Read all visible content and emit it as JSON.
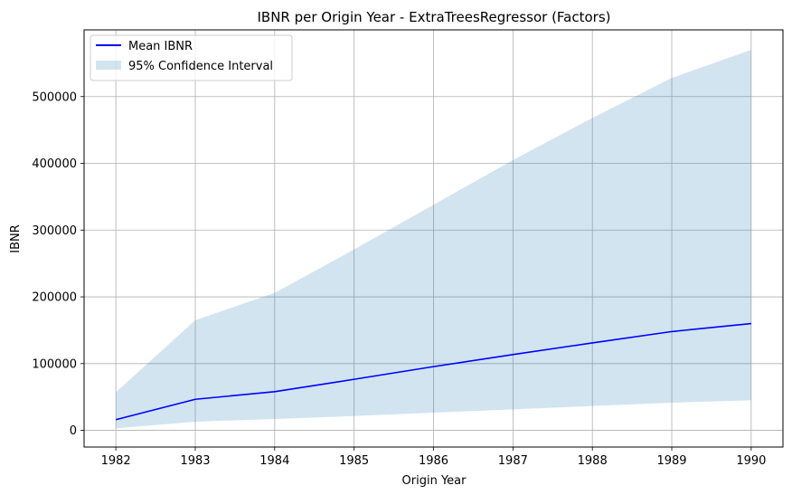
{
  "chart_data": {
    "type": "line",
    "title": "IBNR per Origin Year - ExtraTreesRegressor (Factors)",
    "xlabel": "Origin Year",
    "ylabel": "IBNR",
    "x": [
      1982,
      1983,
      1984,
      1985,
      1986,
      1987,
      1988,
      1989,
      1990
    ],
    "x_tick_labels": [
      "1982",
      "1983",
      "1984",
      "1985",
      "1986",
      "1987",
      "1988",
      "1989",
      "1990"
    ],
    "y_ticks": [
      0,
      100000,
      200000,
      300000,
      400000,
      500000
    ],
    "y_tick_labels": [
      "0",
      "100000",
      "200000",
      "300000",
      "400000",
      "500000"
    ],
    "xlim": [
      1981.6,
      1990.4
    ],
    "ylim": [
      -25000,
      600000
    ],
    "grid": true,
    "legend_position": "top-left",
    "series": [
      {
        "name": "Mean IBNR",
        "kind": "line",
        "color": "#0000ff",
        "values": [
          16000,
          46500,
          58000,
          76500,
          95500,
          113500,
          131000,
          148000,
          160000
        ]
      },
      {
        "name": "95% Confidence Interval",
        "kind": "band",
        "color": "#1f77b4",
        "lower": [
          3000,
          13000,
          17000,
          21500,
          26500,
          31500,
          36500,
          41500,
          45000
        ],
        "upper": [
          57000,
          165000,
          206000,
          271000,
          338000,
          405000,
          468000,
          528000,
          570000
        ]
      }
    ]
  }
}
